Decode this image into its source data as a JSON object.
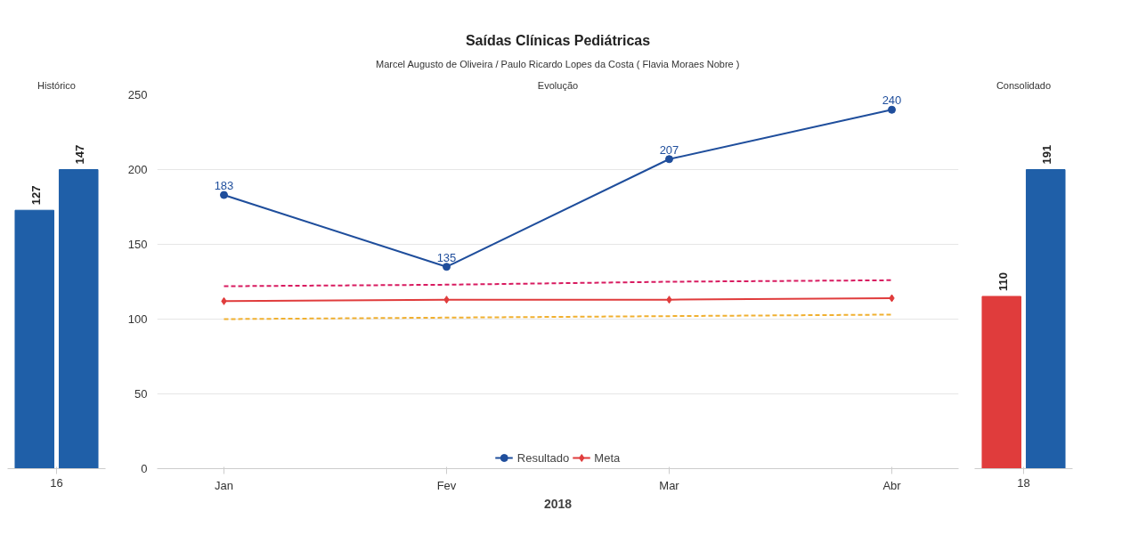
{
  "chart_data": [
    {
      "type": "bar",
      "title": "Histórico",
      "categories": [
        "16"
      ],
      "data_labels": true,
      "series": [
        {
          "color": "#1f5fa8",
          "values": [
            127
          ]
        },
        {
          "color": "#1f5fa8",
          "values": [
            147
          ]
        }
      ]
    },
    {
      "type": "line",
      "title": "Saídas Clínicas Pediátricas",
      "subtitle": "Marcel Augusto de Oliveira / Paulo Ricardo Lopes da Costa ( Flavia Moraes Nobre )",
      "annotations": [
        "Evolução"
      ],
      "xlabel": "2018",
      "categories": [
        "Jan",
        "Fev",
        "Mar",
        "Abr"
      ],
      "ylim": [
        0,
        250
      ],
      "yticks": [
        0,
        50,
        100,
        150,
        200,
        250
      ],
      "grid": "y",
      "legend": "bottom",
      "series": [
        {
          "name": "Resultado",
          "color": "#1f4e9c",
          "values": [
            183,
            135,
            207,
            240
          ],
          "marker": "circle",
          "data_labels": true
        },
        {
          "name": "Meta",
          "color": "#e03c3c",
          "values": [
            112,
            113,
            113,
            114
          ],
          "marker": "diamond"
        },
        {
          "color": "#d81b60",
          "values": [
            122,
            123,
            125,
            126
          ],
          "line_style": "dashed",
          "marker": "none"
        },
        {
          "color": "#f0b030",
          "values": [
            100,
            101,
            102,
            103
          ],
          "line_style": "dashed",
          "marker": "none"
        }
      ]
    },
    {
      "type": "bar",
      "title": "Consolidado",
      "categories": [
        "18"
      ],
      "data_labels": true,
      "series": [
        {
          "color": "#e03c3c",
          "values": [
            110
          ]
        },
        {
          "color": "#1f5fa8",
          "values": [
            191
          ]
        }
      ]
    }
  ]
}
